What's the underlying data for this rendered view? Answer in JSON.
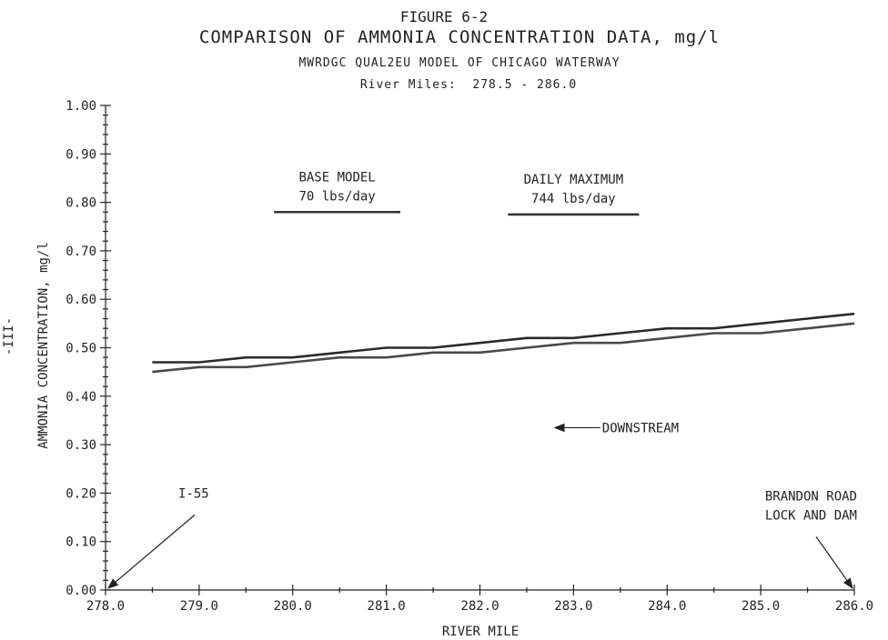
{
  "chart_data": {
    "type": "line",
    "figure_label": "FIGURE 6-2",
    "title": "COMPARISON OF AMMONIA CONCENTRATION DATA, mg/l",
    "subtitle": "MWRDGC QUAL2EU MODEL OF CHICAGO WATERWAY",
    "subtitle2": "River Miles:  278.5 - 286.0",
    "xlabel": "RIVER MILE",
    "ylabel": "AMMONIA CONCENTRATION, mg/l",
    "xlim": [
      278.0,
      286.0
    ],
    "ylim": [
      0.0,
      1.0
    ],
    "x_ticks": [
      "278.0",
      "279.0",
      "280.0",
      "281.0",
      "282.0",
      "283.0",
      "284.0",
      "285.0",
      "286.0"
    ],
    "y_ticks": [
      "0.00",
      "0.10",
      "0.20",
      "0.30",
      "0.40",
      "0.50",
      "0.60",
      "0.70",
      "0.80",
      "0.90",
      "1.00"
    ],
    "x": [
      278.5,
      279.0,
      279.5,
      280.0,
      280.5,
      281.0,
      281.5,
      282.0,
      282.5,
      283.0,
      283.5,
      284.0,
      284.5,
      285.0,
      285.5,
      286.0
    ],
    "series": [
      {
        "name": "DAILY MAXIMUM\n744 lbs/day",
        "color": "#2a2a2a",
        "values": [
          0.47,
          0.47,
          0.48,
          0.48,
          0.49,
          0.5,
          0.5,
          0.51,
          0.52,
          0.52,
          0.53,
          0.54,
          0.54,
          0.55,
          0.56,
          0.57
        ]
      },
      {
        "name": "BASE MODEL\n70 lbs/day",
        "color": "#4a4a4a",
        "values": [
          0.45,
          0.46,
          0.46,
          0.47,
          0.48,
          0.48,
          0.49,
          0.49,
          0.5,
          0.51,
          0.51,
          0.52,
          0.53,
          0.53,
          0.54,
          0.55
        ]
      }
    ],
    "legend": [
      {
        "line1": "BASE MODEL",
        "line2": "70 lbs/day",
        "x_from": 279.8,
        "x_to": 281.15,
        "y": 0.78
      },
      {
        "line1": "DAILY MAXIMUM",
        "line2": "744 lbs/day",
        "x_from": 282.3,
        "x_to": 283.7,
        "y": 0.775
      }
    ],
    "annotations": [
      {
        "text": "I-55",
        "x": 278.0,
        "y": 0.0
      },
      {
        "text": "BRANDON ROAD",
        "text2": "LOCK AND DAM",
        "x": 286.0,
        "y": 0.0
      },
      {
        "text": "DOWNSTREAM",
        "x": 282.8,
        "y": 0.335
      }
    ],
    "side_mark": "-III-",
    "grid": false
  }
}
